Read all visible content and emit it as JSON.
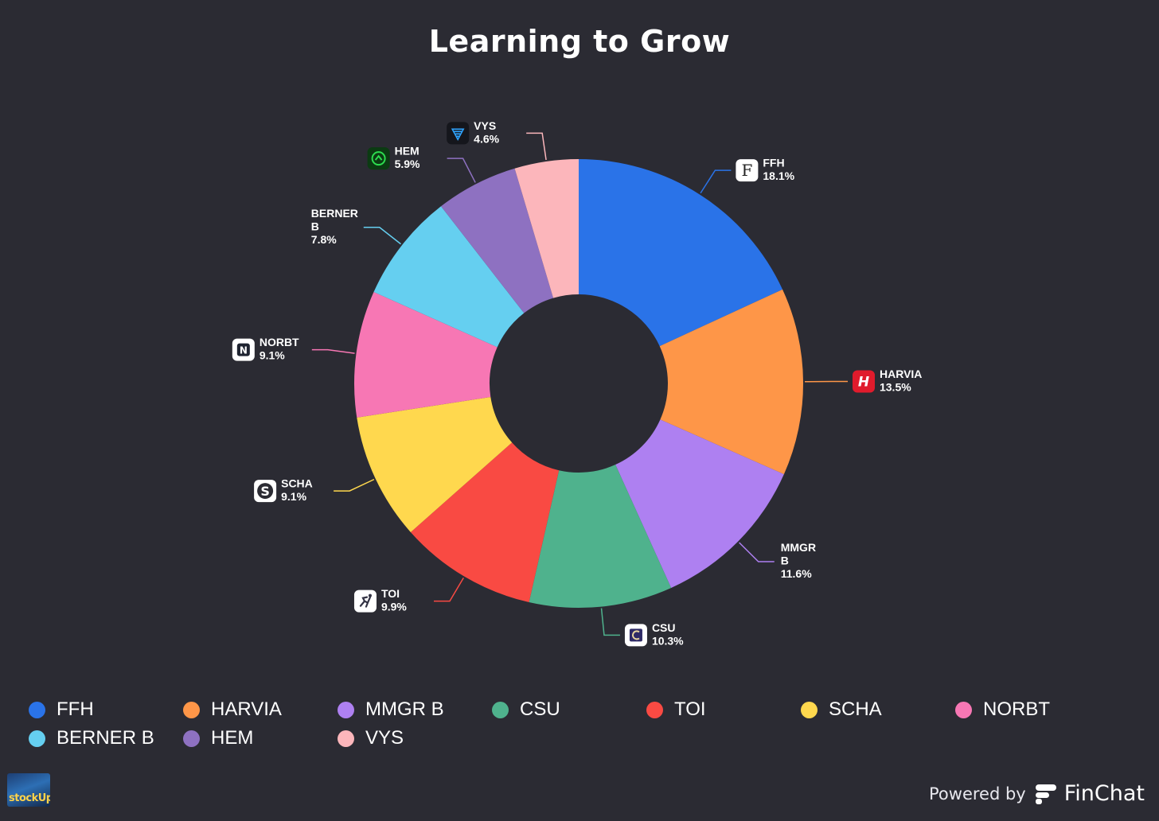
{
  "chart_data": {
    "type": "pie",
    "title": "Learning to Grow",
    "legend_placement": "bottom",
    "series": [
      {
        "name": "FFH",
        "value": 18.1,
        "value_label": "18.1%",
        "color": "#2a73e8",
        "icon": "fairfax-f-icon"
      },
      {
        "name": "HARVIA",
        "value": 13.5,
        "value_label": "13.5%",
        "color": "#fe9648",
        "icon": "harvia-h-icon"
      },
      {
        "name": "MMGR B",
        "value": 11.6,
        "value_label": "11.6%",
        "color": "#ae80f1",
        "icon": ""
      },
      {
        "name": "CSU",
        "value": 10.3,
        "value_label": "10.3%",
        "color": "#4fb28d",
        "icon": "constellation-c-icon"
      },
      {
        "name": "TOI",
        "value": 9.9,
        "value_label": "9.9%",
        "color": "#f94a43",
        "icon": "topicus-runner-icon"
      },
      {
        "name": "SCHA",
        "value": 9.1,
        "value_label": "9.1%",
        "color": "#ffd84e",
        "icon": "schibsted-s-icon"
      },
      {
        "name": "NORBT",
        "value": 9.1,
        "value_label": "9.1%",
        "color": "#f777b4",
        "icon": "norbit-n-icon"
      },
      {
        "name": "BERNER B",
        "value": 7.8,
        "value_label": "7.8%",
        "color": "#65cff0",
        "icon": ""
      },
      {
        "name": "HEM",
        "value": 5.9,
        "value_label": "5.9%",
        "color": "#8e71c1",
        "icon": "hemnet-house-icon"
      },
      {
        "name": "VYS",
        "value": 4.6,
        "value_label": "4.6%",
        "color": "#fcb6bb",
        "icon": "vysarn-funnel-icon"
      }
    ]
  },
  "footer": {
    "logo_text": "stockUp",
    "powered_by": "Powered by",
    "brand": "FinChat"
  }
}
